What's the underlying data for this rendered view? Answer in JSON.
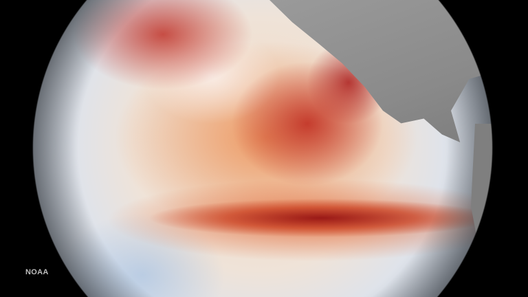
{
  "image": {
    "subject": "globe-sea-surface-temperature-anomaly",
    "colors": {
      "warm": "#b4231e",
      "neutral": "#f0e6dc",
      "cool": "#b9c8dc",
      "land": "#8c8c8c",
      "space": "#000000"
    }
  },
  "credit": "NOAA"
}
